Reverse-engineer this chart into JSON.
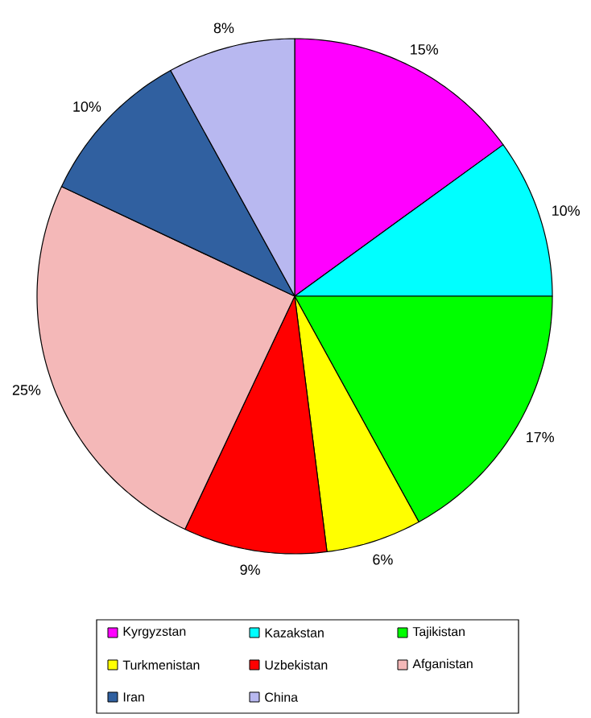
{
  "chart_data": {
    "type": "pie",
    "categories": [
      "Kyrgyzstan",
      "Kazakstan",
      "Tajikistan",
      "Turkmenistan",
      "Uzbekistan",
      "Afganistan",
      "Iran",
      "China"
    ],
    "values": [
      15,
      10,
      17,
      6,
      9,
      25,
      10,
      8
    ],
    "value_labels": [
      "15%",
      "10%",
      "17%",
      "6%",
      "9%",
      "25%",
      "10%",
      "8%"
    ],
    "colors": [
      "#ff00ff",
      "#00ffff",
      "#00ff00",
      "#ffff00",
      "#ff0000",
      "#f4b8b8",
      "#3060a0",
      "#b8b8f0"
    ],
    "legend": "bottom"
  }
}
